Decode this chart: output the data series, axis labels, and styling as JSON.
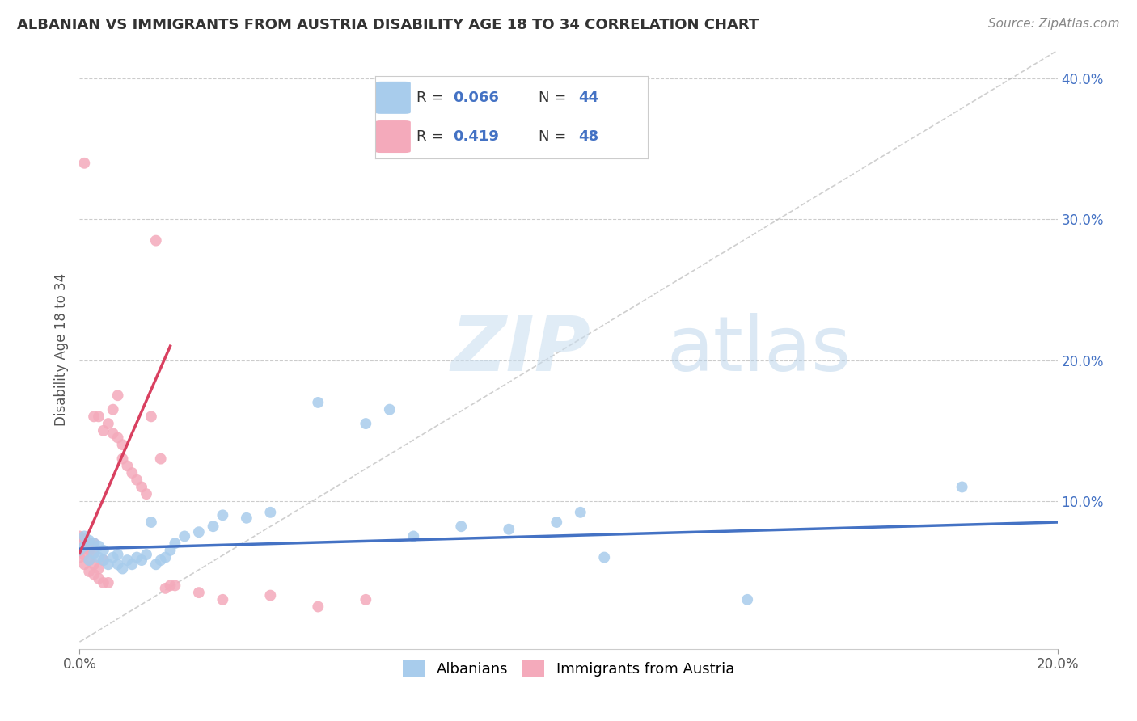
{
  "title": "ALBANIAN VS IMMIGRANTS FROM AUSTRIA DISABILITY AGE 18 TO 34 CORRELATION CHART",
  "source": "Source: ZipAtlas.com",
  "ylabel": "Disability Age 18 to 34",
  "xlim": [
    0.0,
    0.205
  ],
  "ylim": [
    -0.005,
    0.42
  ],
  "yticks": [
    0.1,
    0.2,
    0.3,
    0.4
  ],
  "ytick_labels": [
    "10.0%",
    "20.0%",
    "30.0%",
    "40.0%"
  ],
  "blue_color": "#A8CCEC",
  "pink_color": "#F4AABB",
  "blue_line_color": "#4472C4",
  "pink_line_color": "#D94060",
  "diag_line_color": "#BBBBBB",
  "grid_color": "#CCCCCC",
  "legend_R1": "0.066",
  "legend_N1": "44",
  "legend_R2": "0.419",
  "legend_N2": "48",
  "blue_scatter_x": [
    0.0,
    0.001,
    0.001,
    0.002,
    0.002,
    0.003,
    0.003,
    0.004,
    0.004,
    0.005,
    0.005,
    0.006,
    0.007,
    0.008,
    0.008,
    0.009,
    0.01,
    0.011,
    0.012,
    0.013,
    0.014,
    0.015,
    0.016,
    0.017,
    0.018,
    0.019,
    0.02,
    0.022,
    0.025,
    0.028,
    0.03,
    0.035,
    0.04,
    0.05,
    0.06,
    0.065,
    0.07,
    0.08,
    0.09,
    0.1,
    0.105,
    0.11,
    0.14,
    0.185
  ],
  "blue_scatter_y": [
    0.065,
    0.068,
    0.075,
    0.058,
    0.072,
    0.063,
    0.07,
    0.06,
    0.068,
    0.058,
    0.065,
    0.055,
    0.06,
    0.055,
    0.062,
    0.052,
    0.058,
    0.055,
    0.06,
    0.058,
    0.062,
    0.085,
    0.055,
    0.058,
    0.06,
    0.065,
    0.07,
    0.075,
    0.078,
    0.082,
    0.09,
    0.088,
    0.092,
    0.17,
    0.155,
    0.165,
    0.075,
    0.082,
    0.08,
    0.085,
    0.092,
    0.06,
    0.03,
    0.11
  ],
  "pink_scatter_x": [
    0.0,
    0.0,
    0.0,
    0.0,
    0.001,
    0.001,
    0.001,
    0.001,
    0.001,
    0.002,
    0.002,
    0.002,
    0.002,
    0.003,
    0.003,
    0.003,
    0.003,
    0.003,
    0.004,
    0.004,
    0.004,
    0.005,
    0.005,
    0.005,
    0.006,
    0.006,
    0.007,
    0.007,
    0.008,
    0.008,
    0.009,
    0.009,
    0.01,
    0.011,
    0.012,
    0.013,
    0.014,
    0.015,
    0.016,
    0.017,
    0.018,
    0.019,
    0.02,
    0.025,
    0.03,
    0.04,
    0.05,
    0.06
  ],
  "pink_scatter_y": [
    0.06,
    0.065,
    0.07,
    0.075,
    0.055,
    0.062,
    0.068,
    0.073,
    0.34,
    0.05,
    0.058,
    0.065,
    0.07,
    0.048,
    0.055,
    0.063,
    0.07,
    0.16,
    0.045,
    0.052,
    0.16,
    0.042,
    0.058,
    0.15,
    0.042,
    0.155,
    0.148,
    0.165,
    0.145,
    0.175,
    0.13,
    0.14,
    0.125,
    0.12,
    0.115,
    0.11,
    0.105,
    0.16,
    0.285,
    0.13,
    0.038,
    0.04,
    0.04,
    0.035,
    0.03,
    0.033,
    0.025,
    0.03
  ],
  "blue_line_x0": 0.0,
  "blue_line_x1": 0.205,
  "blue_line_y0": 0.066,
  "blue_line_y1": 0.085,
  "pink_line_x0": 0.0,
  "pink_line_x1": 0.019,
  "pink_line_y0": 0.063,
  "pink_line_y1": 0.21
}
